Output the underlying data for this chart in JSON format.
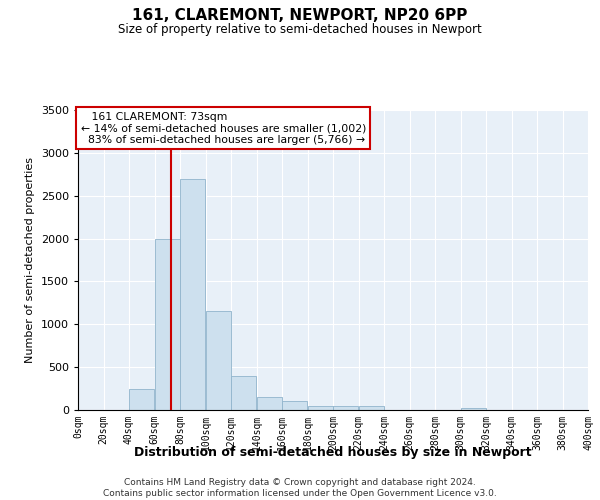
{
  "title": "161, CLAREMONT, NEWPORT, NP20 6PP",
  "subtitle": "Size of property relative to semi-detached houses in Newport",
  "xlabel": "Distribution of semi-detached houses by size in Newport",
  "ylabel": "Number of semi-detached properties",
  "property_size": 73,
  "property_label": "161 CLAREMONT: 73sqm",
  "pct_smaller": 14,
  "count_smaller": "1,002",
  "pct_larger": 83,
  "count_larger": "5,766",
  "bin_edges": [
    0,
    20,
    40,
    60,
    80,
    100,
    120,
    140,
    160,
    180,
    200,
    220,
    240,
    260,
    280,
    300,
    320,
    340,
    360,
    380,
    400
  ],
  "bar_heights": [
    0,
    5,
    250,
    2000,
    2700,
    1150,
    400,
    150,
    100,
    50,
    50,
    50,
    5,
    5,
    5,
    25,
    5,
    5,
    0,
    0
  ],
  "bar_color": "#cde0ee",
  "bar_edgecolor": "#90b4cc",
  "marker_color": "#cc0000",
  "annotation_box_edgecolor": "#cc0000",
  "background_color": "#e8f0f8",
  "ylim": [
    0,
    3500
  ],
  "footer_line1": "Contains HM Land Registry data © Crown copyright and database right 2024.",
  "footer_line2": "Contains public sector information licensed under the Open Government Licence v3.0."
}
